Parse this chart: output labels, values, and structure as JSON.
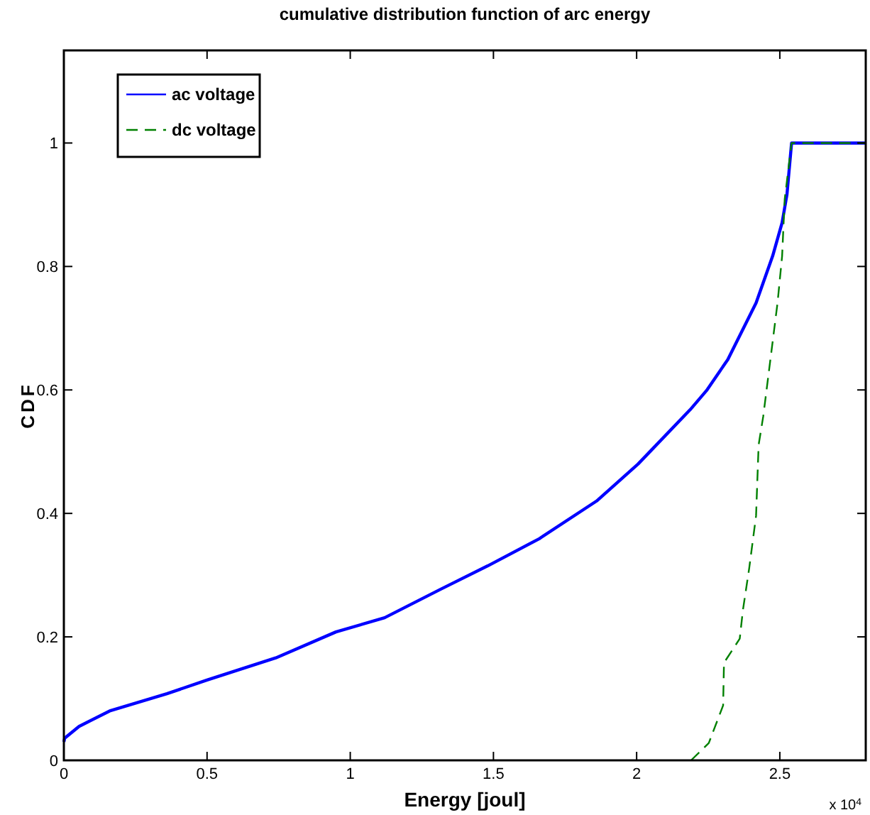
{
  "chart_data": {
    "type": "line",
    "title": "cumulative distribution function of arc energy",
    "xlabel": "Energy [joul]",
    "ylabel": "CDF",
    "xlim": [
      0,
      2.8
    ],
    "xticks": [
      0,
      0.5,
      1,
      1.5,
      2,
      2.5
    ],
    "ylim": [
      0,
      1.15
    ],
    "yticks": [
      0,
      0.2,
      0.4,
      0.6,
      0.8,
      1
    ],
    "annotations": [
      "x 10$^{4}$"
    ],
    "legend": "top left",
    "grid": false,
    "series": [
      {
        "name": "ac voltage",
        "color": "#0000ff",
        "line_style": "solid",
        "x": [
          0,
          0.003,
          0.053,
          0.16,
          0.36,
          0.5,
          0.74,
          0.95,
          1.12,
          1.315,
          1.48,
          1.66,
          1.86,
          2.005,
          2.187,
          2.244,
          2.318,
          2.417,
          2.475,
          2.508,
          2.525,
          2.541,
          2.8
        ],
        "values": [
          0.03,
          0.036,
          0.055,
          0.08,
          0.108,
          0.13,
          0.166,
          0.208,
          0.231,
          0.277,
          0.315,
          0.359,
          0.42,
          0.48,
          0.568,
          0.599,
          0.649,
          0.741,
          0.817,
          0.871,
          0.917,
          1,
          1
        ]
      },
      {
        "name": "dc voltage",
        "color": "#008000",
        "line_style": "dashed",
        "x": [
          2.19,
          2.252,
          2.302,
          2.305,
          2.36,
          2.371,
          2.393,
          2.417,
          2.426,
          2.442,
          2.467,
          2.492,
          2.508,
          2.517,
          2.541,
          2.8
        ],
        "values": [
          0,
          0.028,
          0.089,
          0.158,
          0.197,
          0.243,
          0.311,
          0.396,
          0.511,
          0.557,
          0.649,
          0.741,
          0.817,
          0.909,
          1,
          1
        ]
      }
    ]
  }
}
